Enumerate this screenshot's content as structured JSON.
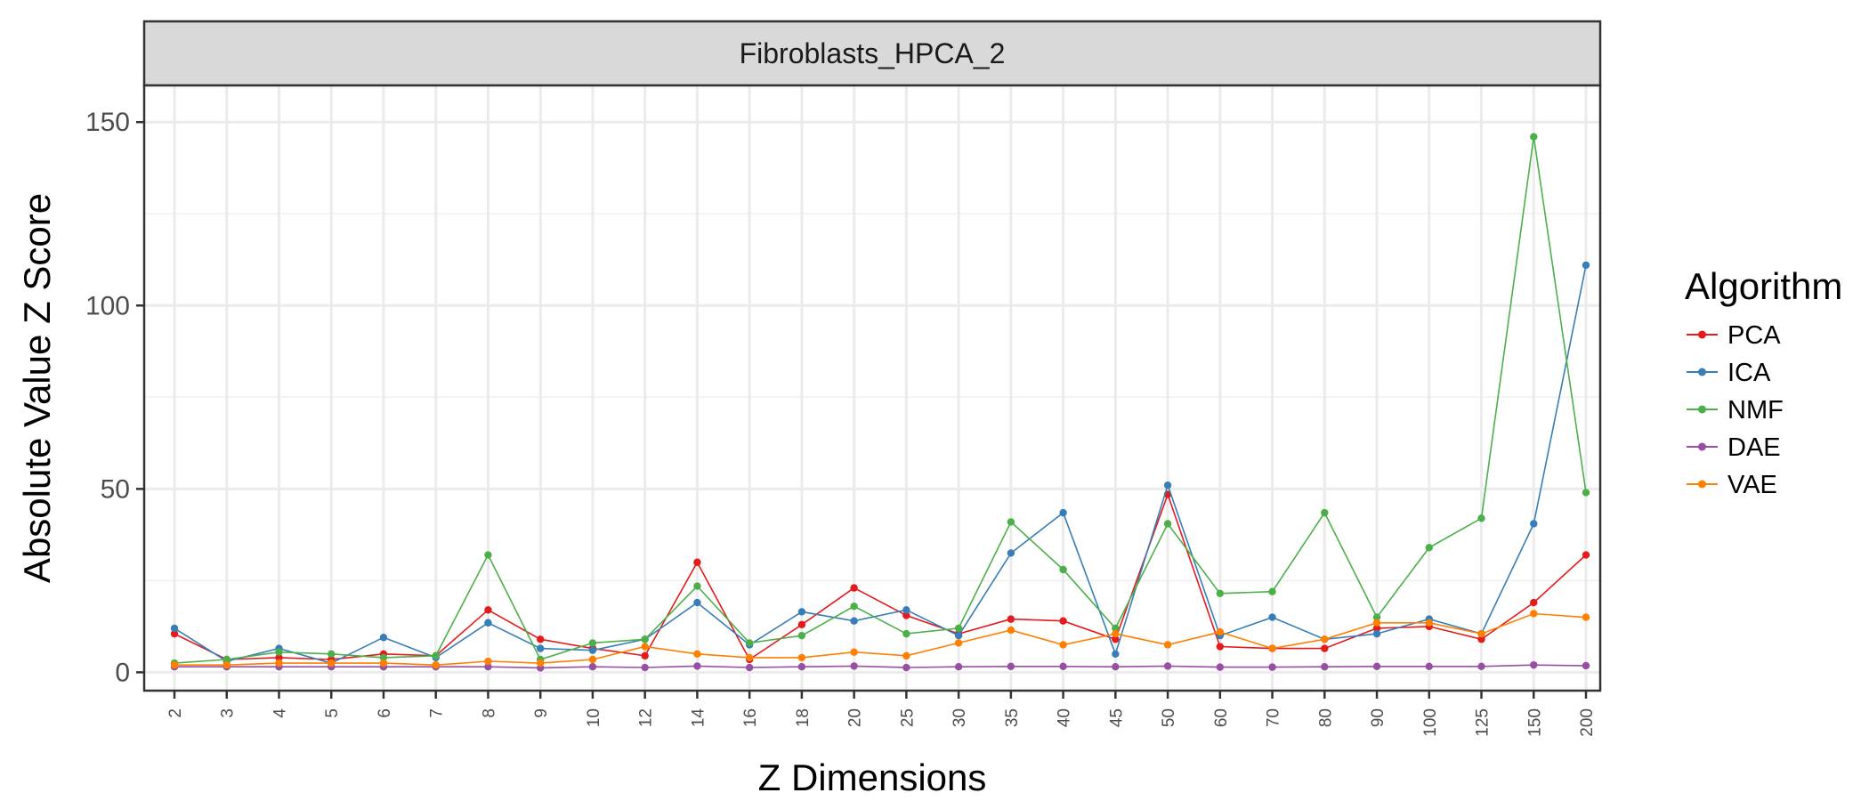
{
  "chart_data": {
    "type": "line",
    "facet_title": "Fibroblasts_HPCA_2",
    "xlabel": "Z Dimensions",
    "ylabel": "Absolute Value Z Score",
    "categories": [
      "2",
      "3",
      "4",
      "5",
      "6",
      "7",
      "8",
      "9",
      "10",
      "12",
      "14",
      "16",
      "18",
      "20",
      "25",
      "30",
      "35",
      "40",
      "45",
      "50",
      "60",
      "70",
      "80",
      "90",
      "100",
      "125",
      "150",
      "200"
    ],
    "ylim": [
      -5,
      160
    ],
    "yticks": [
      0,
      50,
      100,
      150
    ],
    "grid": true,
    "legend": {
      "title": "Algorithm",
      "position": "right"
    },
    "series": [
      {
        "name": "PCA",
        "color": "#e41a1c",
        "values": [
          10.5,
          3.5,
          4.0,
          3.5,
          5.0,
          4.5,
          17.0,
          9.0,
          6.5,
          4.5,
          30.0,
          3.5,
          13.0,
          23.0,
          15.5,
          10.5,
          14.5,
          14.0,
          9.0,
          48.5,
          7.0,
          6.5,
          6.5,
          12.0,
          12.5,
          9.0,
          19.0,
          32.0
        ]
      },
      {
        "name": "ICA",
        "color": "#377eb8",
        "values": [
          12.0,
          3.0,
          6.5,
          2.5,
          9.5,
          4.0,
          13.5,
          6.5,
          6.0,
          9.0,
          19.0,
          7.5,
          16.5,
          14.0,
          17.0,
          10.0,
          32.5,
          43.5,
          5.0,
          51.0,
          10.0,
          15.0,
          9.0,
          10.5,
          14.5,
          10.5,
          40.5,
          111.0
        ]
      },
      {
        "name": "NMF",
        "color": "#4daf4a",
        "values": [
          2.5,
          3.5,
          5.5,
          5.0,
          4.0,
          4.5,
          32.0,
          3.5,
          8.0,
          9.0,
          23.5,
          8.0,
          10.0,
          18.0,
          10.5,
          12.0,
          41.0,
          28.0,
          12.0,
          40.5,
          21.5,
          22.0,
          43.5,
          15.0,
          34.0,
          42.0,
          146.0,
          49.0
        ]
      },
      {
        "name": "DAE",
        "color": "#984ea3",
        "values": [
          1.5,
          1.5,
          1.5,
          1.5,
          1.5,
          1.5,
          1.5,
          1.2,
          1.5,
          1.3,
          1.7,
          1.3,
          1.5,
          1.7,
          1.3,
          1.5,
          1.6,
          1.6,
          1.5,
          1.7,
          1.4,
          1.4,
          1.5,
          1.6,
          1.6,
          1.6,
          2.0,
          1.8
        ]
      },
      {
        "name": "VAE",
        "color": "#ff7f00",
        "values": [
          2.0,
          2.0,
          2.5,
          2.5,
          2.5,
          2.0,
          3.0,
          2.5,
          3.5,
          7.0,
          5.0,
          4.0,
          4.0,
          5.5,
          4.5,
          8.0,
          11.5,
          7.5,
          10.5,
          7.5,
          11.0,
          6.5,
          9.0,
          13.5,
          13.5,
          10.5,
          16.0,
          15.0
        ]
      }
    ]
  }
}
